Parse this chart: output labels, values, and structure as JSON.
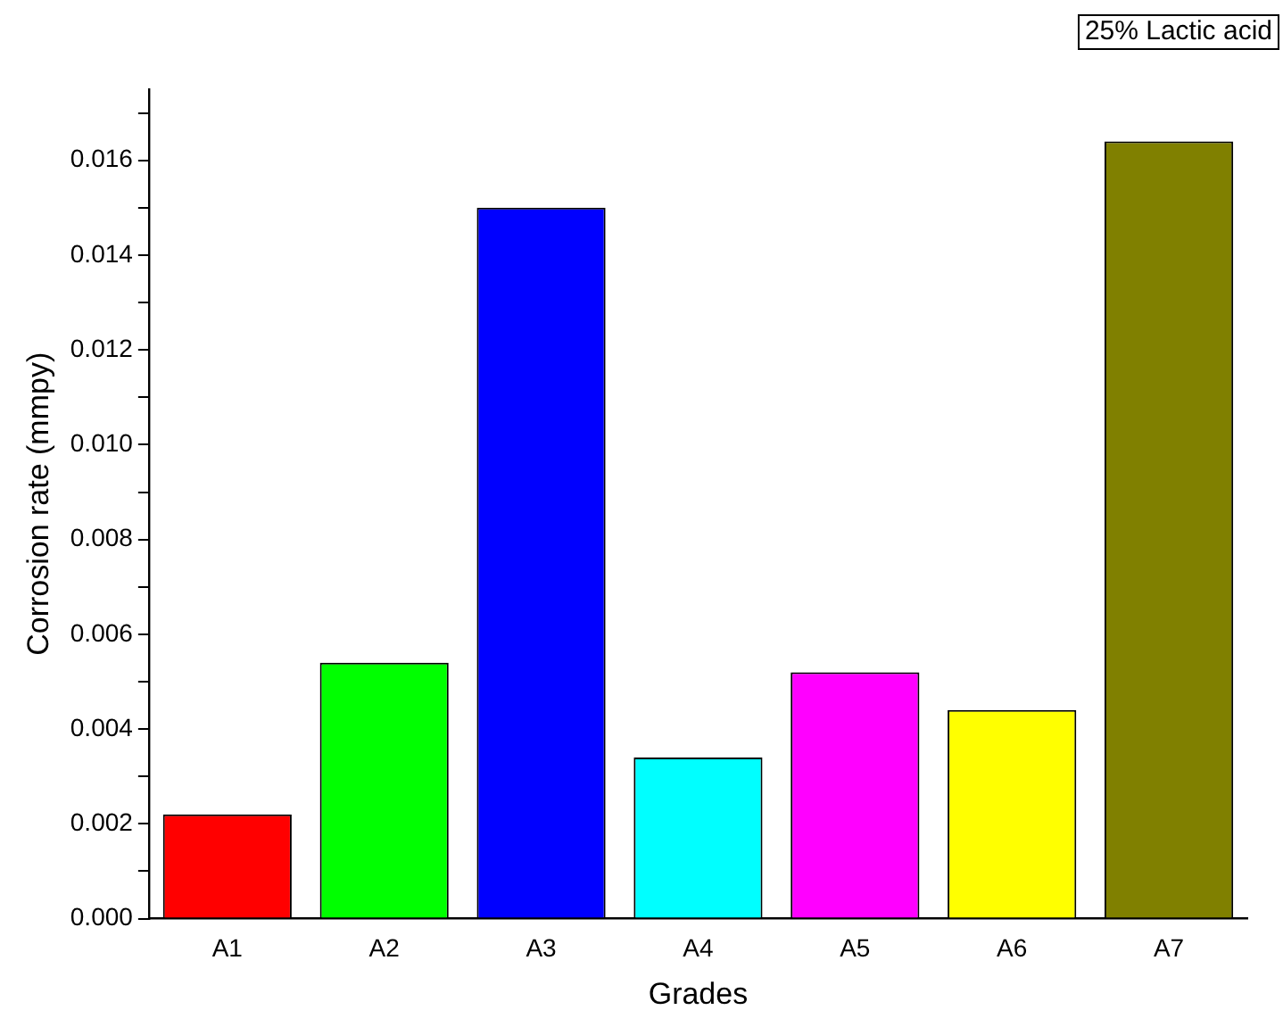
{
  "chart_data": {
    "type": "bar",
    "xlabel": "Grades",
    "ylabel": "Corrosion rate (mmpy)",
    "categories": [
      "A1",
      "A2",
      "A3",
      "A4",
      "A5",
      "A6",
      "A7"
    ],
    "values": [
      0.0022,
      0.0054,
      0.015,
      0.0034,
      0.0052,
      0.0044,
      0.0164
    ],
    "colors": [
      "#ff0000",
      "#00ff00",
      "#0000ff",
      "#00ffff",
      "#ff00ff",
      "#ffff00",
      "#808000"
    ],
    "ylim": [
      0,
      0.0175
    ],
    "yticks": [
      {
        "value": 0,
        "label": "0.000"
      },
      {
        "value": 0.001,
        "label": null
      },
      {
        "value": 0.002,
        "label": "0.002"
      },
      {
        "value": 0.003,
        "label": null
      },
      {
        "value": 0.004,
        "label": "0.004"
      },
      {
        "value": 0.005,
        "label": null
      },
      {
        "value": 0.006,
        "label": "0.006"
      },
      {
        "value": 0.007,
        "label": null
      },
      {
        "value": 0.008,
        "label": "0.008"
      },
      {
        "value": 0.009,
        "label": null
      },
      {
        "value": 0.01,
        "label": "0.010"
      },
      {
        "value": 0.011,
        "label": null
      },
      {
        "value": 0.012,
        "label": "0.012"
      },
      {
        "value": 0.013,
        "label": null
      },
      {
        "value": 0.014,
        "label": "0.014"
      },
      {
        "value": 0.015,
        "label": null
      },
      {
        "value": 0.016,
        "label": "0.016"
      },
      {
        "value": 0.017,
        "label": null
      }
    ],
    "annotations": [
      "25% Lactic acid"
    ],
    "grid": false,
    "legend": false
  }
}
